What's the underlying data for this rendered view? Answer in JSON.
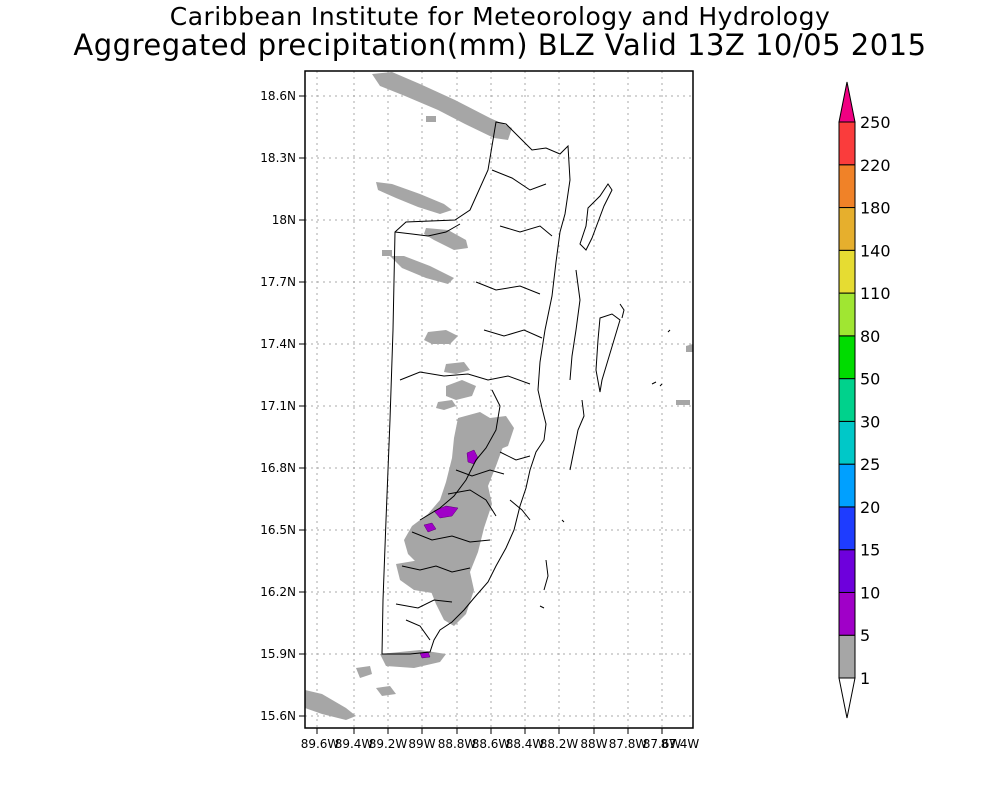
{
  "header": {
    "institute": "Caribbean Institute for Meteorology and Hydrology",
    "product": "Aggregated precipitation(mm) BLZ Valid 13Z 10/05 2015"
  },
  "map": {
    "lat_labels": [
      "18.6N",
      "18.3N",
      "18N",
      "17.7N",
      "17.4N",
      "17.1N",
      "16.8N",
      "16.5N",
      "16.2N",
      "15.9N",
      "15.6N"
    ],
    "lon_labels": [
      "89.6W",
      "89.4W",
      "89.2W",
      "89W",
      "88.8W",
      "88.6W",
      "88.4W",
      "88.2W",
      "88W",
      "87.8W",
      "87.6W",
      "87.4W"
    ],
    "grid": true,
    "colors": {
      "rain_1_5": "#a6a6a6",
      "rain_5_10": "#a000c8",
      "border": "#000000"
    }
  },
  "colorbar": {
    "levels": [
      "1",
      "5",
      "10",
      "15",
      "20",
      "25",
      "30",
      "50",
      "80",
      "110",
      "140",
      "180",
      "220",
      "250"
    ],
    "colors": [
      "#a6a6a6",
      "#a000c8",
      "#6e00dc",
      "#1e3cff",
      "#00a0ff",
      "#00c8c8",
      "#00d28c",
      "#00dc00",
      "#a0e632",
      "#e6dc32",
      "#e6af2d",
      "#f08228",
      "#fa3c3c",
      "#f00082"
    ],
    "under_color": "#ffffff",
    "over_color": "#f00082"
  }
}
